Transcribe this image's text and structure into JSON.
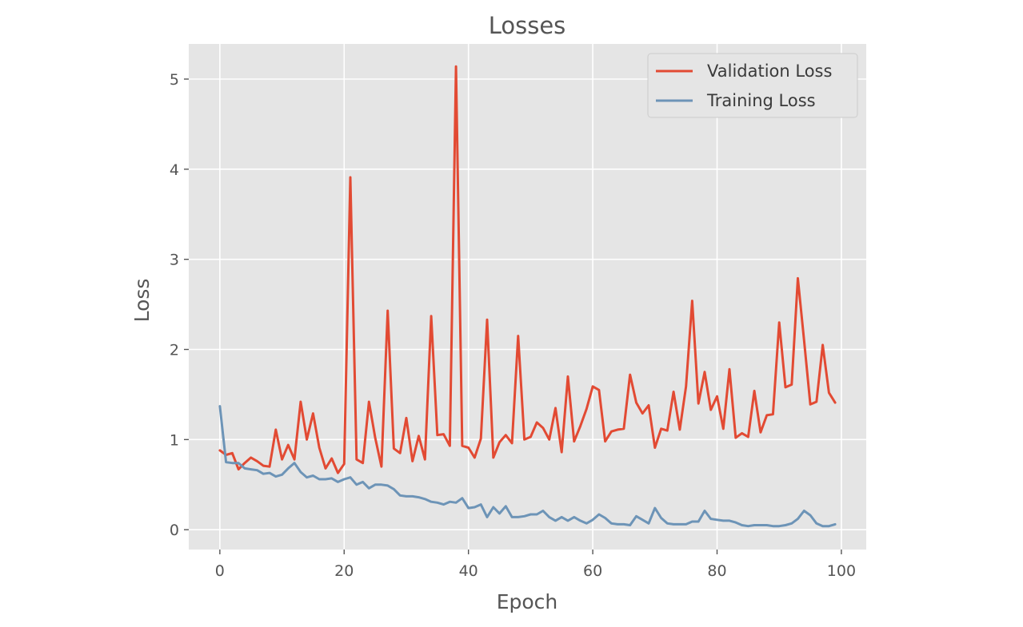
{
  "chart_data": {
    "type": "line",
    "title": "Losses",
    "xlabel": "Epoch",
    "ylabel": "Loss",
    "xlim": [
      -5,
      104
    ],
    "ylim": [
      -0.22,
      5.39
    ],
    "xticks": [
      0,
      20,
      40,
      60,
      80,
      100
    ],
    "yticks": [
      0,
      1,
      2,
      3,
      4,
      5
    ],
    "grid": true,
    "legend_position": "top-right",
    "x": [
      0,
      1,
      2,
      3,
      4,
      5,
      6,
      7,
      8,
      9,
      10,
      11,
      12,
      13,
      14,
      15,
      16,
      17,
      18,
      19,
      20,
      21,
      22,
      23,
      24,
      25,
      26,
      27,
      28,
      29,
      30,
      31,
      32,
      33,
      34,
      35,
      36,
      37,
      38,
      39,
      40,
      41,
      42,
      43,
      44,
      45,
      46,
      47,
      48,
      49,
      50,
      51,
      52,
      53,
      54,
      55,
      56,
      57,
      58,
      59,
      60,
      61,
      62,
      63,
      64,
      65,
      66,
      67,
      68,
      69,
      70,
      71,
      72,
      73,
      74,
      75,
      76,
      77,
      78,
      79,
      80,
      81,
      82,
      83,
      84,
      85,
      86,
      87,
      88,
      89,
      90,
      91,
      92,
      93,
      94,
      95,
      96,
      97,
      98,
      99
    ],
    "series": [
      {
        "name": "Validation Loss",
        "color": "#E24A33",
        "values": [
          0.88,
          0.83,
          0.85,
          0.67,
          0.74,
          0.8,
          0.76,
          0.71,
          0.7,
          1.11,
          0.78,
          0.94,
          0.78,
          1.42,
          1.0,
          1.29,
          0.91,
          0.68,
          0.79,
          0.63,
          0.73,
          3.91,
          0.78,
          0.74,
          1.42,
          1.02,
          0.7,
          2.43,
          0.9,
          0.85,
          1.24,
          0.76,
          1.04,
          0.78,
          2.37,
          1.05,
          1.06,
          0.93,
          5.14,
          0.93,
          0.91,
          0.8,
          1.01,
          2.33,
          0.8,
          0.97,
          1.05,
          0.96,
          2.15,
          1.0,
          1.03,
          1.19,
          1.13,
          1.0,
          1.35,
          0.86,
          1.7,
          0.98,
          1.15,
          1.34,
          1.59,
          1.55,
          0.98,
          1.09,
          1.11,
          1.12,
          1.72,
          1.41,
          1.29,
          1.38,
          0.91,
          1.12,
          1.1,
          1.53,
          1.11,
          1.59,
          2.54,
          1.4,
          1.75,
          1.33,
          1.48,
          1.12,
          1.78,
          1.02,
          1.07,
          1.03,
          1.54,
          1.08,
          1.27,
          1.28,
          2.3,
          1.58,
          1.61,
          2.79,
          2.1,
          1.39,
          1.42,
          2.05,
          1.52,
          1.41
        ]
      },
      {
        "name": "Training Loss",
        "color": "#6D94B7",
        "values": [
          1.37,
          0.75,
          0.74,
          0.74,
          0.68,
          0.67,
          0.66,
          0.62,
          0.63,
          0.59,
          0.61,
          0.68,
          0.74,
          0.64,
          0.58,
          0.6,
          0.56,
          0.56,
          0.57,
          0.53,
          0.56,
          0.58,
          0.5,
          0.53,
          0.46,
          0.5,
          0.5,
          0.49,
          0.45,
          0.38,
          0.37,
          0.37,
          0.36,
          0.34,
          0.31,
          0.3,
          0.28,
          0.31,
          0.3,
          0.35,
          0.24,
          0.25,
          0.28,
          0.14,
          0.25,
          0.18,
          0.26,
          0.14,
          0.14,
          0.15,
          0.17,
          0.17,
          0.21,
          0.14,
          0.1,
          0.14,
          0.1,
          0.14,
          0.1,
          0.07,
          0.11,
          0.17,
          0.13,
          0.07,
          0.06,
          0.06,
          0.05,
          0.15,
          0.11,
          0.07,
          0.24,
          0.13,
          0.07,
          0.06,
          0.06,
          0.06,
          0.09,
          0.09,
          0.21,
          0.12,
          0.11,
          0.1,
          0.1,
          0.08,
          0.05,
          0.04,
          0.05,
          0.05,
          0.05,
          0.04,
          0.04,
          0.05,
          0.07,
          0.12,
          0.21,
          0.16,
          0.07,
          0.04,
          0.04,
          0.06
        ]
      }
    ]
  }
}
